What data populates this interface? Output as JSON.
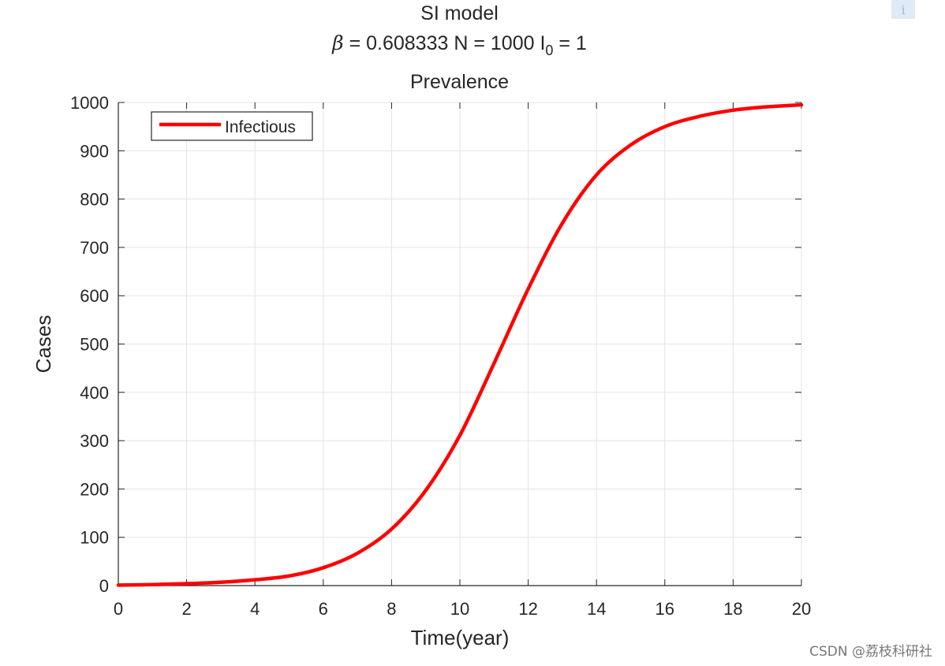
{
  "title": {
    "line1": "SI model",
    "beta_symbol": "β",
    "line2_beta": " = 0.608333  N = 1000  I",
    "line2_sub": "0",
    "line2_tail": " = 1",
    "line3": "Prevalence"
  },
  "watermark": "CSDN @荔枝科研社",
  "chart_data": {
    "type": "line",
    "xlabel": "Time(year)",
    "ylabel": "Cases",
    "xlim": [
      0,
      20
    ],
    "ylim": [
      0,
      1000
    ],
    "xticks": [
      0,
      2,
      4,
      6,
      8,
      10,
      12,
      14,
      16,
      18,
      20
    ],
    "yticks": [
      0,
      100,
      200,
      300,
      400,
      500,
      600,
      700,
      800,
      900,
      1000
    ],
    "grid": true,
    "legend": "top-left",
    "series": [
      {
        "name": "Infectious",
        "color": "#ff0000",
        "x": [
          0,
          1,
          2,
          3,
          4,
          5,
          6,
          7,
          8,
          9,
          10,
          11,
          12,
          13,
          14,
          15,
          16,
          17,
          18,
          19,
          20
        ],
        "y": [
          1,
          2,
          4,
          7,
          12,
          20,
          37,
          67,
          117,
          197,
          311,
          460,
          614,
          750,
          850,
          912,
          950,
          971,
          984,
          991,
          995
        ]
      }
    ]
  }
}
